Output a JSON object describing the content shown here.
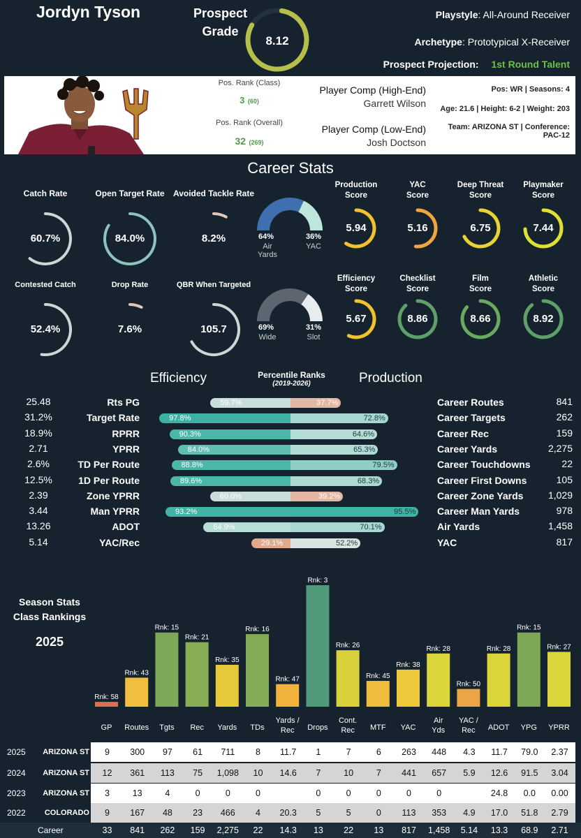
{
  "player": {
    "name": "Jordyn Tyson",
    "grade_label_1": "Prospect",
    "grade_label_2": "Grade",
    "grade": "8.12",
    "grade_fraction": 0.81,
    "playstyle_label": "Playstyle",
    "playstyle": "All-Around Receiver",
    "archetype_label": "Archetype",
    "archetype": "Prototypical X-Receiver",
    "projection_label": "Prospect Projection:",
    "projection": "1st Round Talent"
  },
  "card": {
    "pos_rank_class_label": "Pos. Rank (Class)",
    "pos_rank_class": "3",
    "pos_rank_class_total": "(60)",
    "pos_rank_overall_label": "Pos. Rank (Overall)",
    "pos_rank_overall": "32",
    "pos_rank_overall_total": "(269)",
    "comp_high_label": "Player Comp (High-End)",
    "comp_high": "Garrett Wilson",
    "comp_low_label": "Player Comp (Low-End)",
    "comp_low": "Josh Doctson",
    "info_line1": "Pos: WR | Seasons: 4",
    "info_line2": "Age: 21.6 | Height: 6-2 | Weight: 203",
    "info_line3": "Team: ARIZONA ST | Conference:",
    "info_line4": "PAC-12"
  },
  "career_stats": {
    "title": "Career Stats",
    "left_gauges": [
      {
        "label": "Catch Rate",
        "value": "60.7%",
        "pct": 0.607
      },
      {
        "label": "Open Target Rate",
        "value": "84.0%",
        "pct": 0.84
      },
      {
        "label": "Avoided Tackle Rate",
        "value": "8.2%",
        "pct": 0.082
      },
      {
        "label": "Contested Catch",
        "value": "52.4%",
        "pct": 0.524
      },
      {
        "label": "Drop Rate",
        "value": "7.6%",
        "pct": 0.076
      },
      {
        "label": "QBR When Targeted",
        "value": "105.7",
        "pct": 0.67
      }
    ],
    "split1": {
      "a_pct": "64%",
      "a_label": "Air Yards",
      "b_pct": "36%",
      "b_label": "YAC",
      "a_frac": 0.64,
      "a_color": "#3f6fae",
      "b_color": "#bfe6dc"
    },
    "split2": {
      "a_pct": "69%",
      "a_label": "Wide",
      "b_pct": "31%",
      "b_label": "Slot",
      "a_frac": 0.69,
      "a_color": "#5d6670",
      "b_color": "#e9ecef"
    },
    "scores": [
      {
        "label1": "Production",
        "label2": "Score",
        "value": "5.94",
        "frac": 0.594,
        "color": "#f2c12e"
      },
      {
        "label1": "YAC",
        "label2": "Score",
        "value": "5.16",
        "frac": 0.516,
        "color": "#f0a640"
      },
      {
        "label1": "Deep Threat",
        "label2": "Score",
        "value": "6.75",
        "frac": 0.675,
        "color": "#e8d234"
      },
      {
        "label1": "Playmaker",
        "label2": "Score",
        "value": "7.44",
        "frac": 0.744,
        "color": "#dfe035"
      },
      {
        "label1": "Efficiency",
        "label2": "Score",
        "value": "5.67",
        "frac": 0.567,
        "color": "#f2c12e"
      },
      {
        "label1": "Checklist",
        "label2": "Score",
        "value": "8.86",
        "frac": 0.886,
        "color": "#5fa06a"
      },
      {
        "label1": "Film",
        "label2": "Score",
        "value": "8.66",
        "frac": 0.866,
        "color": "#6ba860"
      },
      {
        "label1": "Athletic",
        "label2": "Score",
        "value": "8.92",
        "frac": 0.892,
        "color": "#5fa06a"
      }
    ]
  },
  "percentiles": {
    "left_title": "Efficiency",
    "center_title": "Percentile Ranks",
    "center_sub": "(2019-2026)",
    "right_title": "Production",
    "rows": [
      {
        "lval": "25.48",
        "lname": "Rts PG",
        "lpct": "59.7%",
        "lp": 59.7,
        "lcolor": "#c9dedb",
        "rpct": "37.7%",
        "rp": 37.7,
        "rcolor": "#e2b7a3",
        "rname": "Career Routes",
        "rval": "841"
      },
      {
        "lval": "31.2%",
        "lname": "Target Rate",
        "lpct": "97.8%",
        "lp": 97.8,
        "lcolor": "#3db2a4",
        "rpct": "72.8%",
        "rp": 72.8,
        "rcolor": "#a7d7d0",
        "rname": "Career Targets",
        "rval": "262"
      },
      {
        "lval": "18.9%",
        "lname": "RPRR",
        "lpct": "90.3%",
        "lp": 90.3,
        "lcolor": "#4ab7a9",
        "rpct": "64.6%",
        "rp": 64.6,
        "rcolor": "#b5dcd6",
        "rname": "Career Rec",
        "rval": "159"
      },
      {
        "lval": "2.71",
        "lname": "YPRR",
        "lpct": "84.0%",
        "lp": 84.0,
        "lcolor": "#5fbdb1",
        "rpct": "65.3%",
        "rp": 65.3,
        "rcolor": "#b3dbd5",
        "rname": "Career Yards",
        "rval": "2,275"
      },
      {
        "lval": "2.6%",
        "lname": "TD Per Route",
        "lpct": "88.8%",
        "lp": 88.8,
        "lcolor": "#4ab7a9",
        "rpct": "79.5%",
        "rp": 79.5,
        "rcolor": "#8fcec5",
        "rname": "Career Touchdowns",
        "rval": "22"
      },
      {
        "lval": "12.5%",
        "lname": "1D Per Route",
        "lpct": "89.6%",
        "lp": 89.6,
        "lcolor": "#4ab7a9",
        "rpct": "68.3%",
        "rp": 68.3,
        "rcolor": "#acd9d2",
        "rname": "Career First Downs",
        "rval": "105"
      },
      {
        "lval": "2.39",
        "lname": "Zone YPRR",
        "lpct": "60.0%",
        "lp": 60.0,
        "lcolor": "#c9dedb",
        "rpct": "39.2%",
        "rp": 39.2,
        "rcolor": "#e2b7a3",
        "rname": "Career Zone Yards",
        "rval": "1,029"
      },
      {
        "lval": "3.44",
        "lname": "Man YPRR",
        "lpct": "93.2%",
        "lp": 93.2,
        "lcolor": "#42b4a6",
        "rpct": "95.5%",
        "rp": 95.5,
        "rcolor": "#3fb3a5",
        "rname": "Career Man Yards",
        "rval": "978"
      },
      {
        "lval": "13.26",
        "lname": "ADOT",
        "lpct": "64.9%",
        "lp": 64.9,
        "lcolor": "#b8dcd6",
        "rpct": "70.1%",
        "rp": 70.1,
        "rcolor": "#a9d8d1",
        "rname": "Air Yards",
        "rval": "1,458"
      },
      {
        "lval": "5.14",
        "lname": "YAC/Rec",
        "lpct": "29.1%",
        "lp": 29.1,
        "lcolor": "#e5a98a",
        "rpct": "52.2%",
        "rp": 52.2,
        "rcolor": "#d9e4e1",
        "rname": "YAC",
        "rval": "817"
      }
    ]
  },
  "season": {
    "title1": "Season Stats",
    "title2": "Class Rankings",
    "year": "2025"
  },
  "chart_data": {
    "type": "bar",
    "categories": [
      "GP",
      "Routes",
      "Tgts",
      "Rec",
      "Yards",
      "TDs",
      "Yards / Rec",
      "Drops",
      "Cont. Rec",
      "MTF",
      "YAC",
      "Air Yds",
      "YAC / Rec",
      "ADOT",
      "YPG",
      "YPRR"
    ],
    "values": [
      58,
      43,
      15,
      21,
      35,
      16,
      47,
      3,
      26,
      45,
      38,
      28,
      50,
      28,
      15,
      27
    ],
    "labels": [
      "Rnk: 58",
      "Rnk: 43",
      "Rnk: 15",
      "Rnk: 21",
      "Rnk: 35",
      "Rnk: 16",
      "Rnk: 47",
      "Rnk: 3",
      "Rnk: 26",
      "Rnk: 45",
      "Rnk: 38",
      "Rnk: 28",
      "Rnk: 50",
      "Rnk: 28",
      "Rnk: 15",
      "Rnk: 27"
    ],
    "colors": [
      "#d9724a",
      "#f0bf3f",
      "#7ea857",
      "#88ad55",
      "#e6ca3c",
      "#85ab56",
      "#f1b23d",
      "#4f9a78",
      "#d8d13c",
      "#f1bc3d",
      "#ebc93b",
      "#dad63c",
      "#eba546",
      "#dbd53c",
      "#7ea857",
      "#dbd53c"
    ]
  },
  "table": {
    "headers": [
      "GP",
      "Routes",
      "Tgts",
      "Rec",
      "Yards",
      "TDs",
      "Yards / Rec",
      "Drops",
      "Cont. Rec",
      "MTF",
      "YAC",
      "Air Yds",
      "YAC / Rec",
      "ADOT",
      "YPG",
      "YPRR"
    ],
    "rows": [
      {
        "year": "2025",
        "team": "ARIZONA ST",
        "cells": [
          "9",
          "300",
          "97",
          "61",
          "711",
          "8",
          "11.7",
          "1",
          "7",
          "6",
          "263",
          "448",
          "4.3",
          "11.7",
          "79.0",
          "2.37"
        ]
      },
      {
        "year": "2024",
        "team": "ARIZONA ST",
        "cells": [
          "12",
          "361",
          "113",
          "75",
          "1,098",
          "10",
          "14.6",
          "7",
          "10",
          "7",
          "441",
          "657",
          "5.9",
          "12.6",
          "91.5",
          "3.04"
        ]
      },
      {
        "year": "2023",
        "team": "ARIZONA ST",
        "cells": [
          "3",
          "13",
          "4",
          "0",
          "0",
          "0",
          "",
          "0",
          "0",
          "0",
          "0",
          "0",
          "",
          "24.8",
          "0.0",
          "0.00"
        ]
      },
      {
        "year": "2022",
        "team": "COLORADO",
        "cells": [
          "9",
          "167",
          "48",
          "23",
          "466",
          "4",
          "20.3",
          "5",
          "5",
          "0",
          "113",
          "353",
          "4.9",
          "17.0",
          "51.8",
          "2.79"
        ]
      }
    ],
    "career_label": "Career",
    "career": [
      "33",
      "841",
      "262",
      "159",
      "2,275",
      "22",
      "14.3",
      "13",
      "22",
      "13",
      "817",
      "1,458",
      "5.14",
      "13.3",
      "68.9",
      "2.71"
    ]
  }
}
